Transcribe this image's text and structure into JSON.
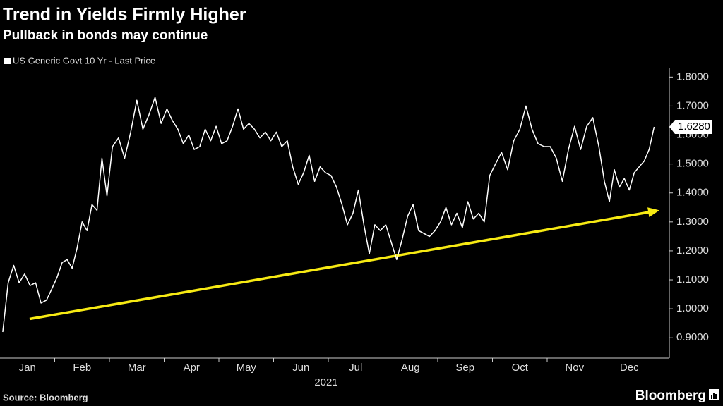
{
  "chart_data": {
    "type": "line",
    "title": "Trend in Yields Firmly Higher",
    "subtitle": "Pullback in bonds may continue",
    "source": "Source: Bloomberg",
    "brand": "Bloomberg",
    "x_label": "2021",
    "categories": [
      "Jan",
      "Feb",
      "Mar",
      "Apr",
      "May",
      "Jun",
      "Jul",
      "Aug",
      "Sep",
      "Oct",
      "Nov",
      "Dec"
    ],
    "series": [
      {
        "name": "US Generic Govt 10 Yr - Last Price",
        "color": "#ffffff",
        "end_label": "1.6280",
        "values": [
          [
            0.92,
            1.09,
            1.15,
            1.09,
            1.12,
            1.08,
            1.09,
            1.02,
            1.03,
            1.07
          ],
          [
            1.11,
            1.16,
            1.17,
            1.14,
            1.21,
            1.3,
            1.27,
            1.36,
            1.34,
            1.52,
            1.39
          ],
          [
            1.56,
            1.59,
            1.52,
            1.61,
            1.72,
            1.62,
            1.67,
            1.73,
            1.64
          ],
          [
            1.69,
            1.65,
            1.62,
            1.57,
            1.6,
            1.55,
            1.56,
            1.62,
            1.58,
            1.63
          ],
          [
            1.57,
            1.58,
            1.63,
            1.69,
            1.62,
            1.64,
            1.62,
            1.59,
            1.61,
            1.58
          ],
          [
            1.61,
            1.56,
            1.58,
            1.49,
            1.43,
            1.47,
            1.53,
            1.44,
            1.49,
            1.47
          ],
          [
            1.46,
            1.42,
            1.36,
            1.29,
            1.33,
            1.41,
            1.29,
            1.19,
            1.29,
            1.27
          ],
          [
            1.29,
            1.23,
            1.17,
            1.24,
            1.32,
            1.36,
            1.27,
            1.26,
            1.25,
            1.27
          ],
          [
            1.3,
            1.35,
            1.29,
            1.33,
            1.28,
            1.37,
            1.31,
            1.33,
            1.3,
            1.46
          ],
          [
            1.5,
            1.54,
            1.48,
            1.58,
            1.62,
            1.7,
            1.62,
            1.57,
            1.56
          ],
          [
            1.56,
            1.52,
            1.44,
            1.55,
            1.63,
            1.55,
            1.63,
            1.66,
            1.56
          ],
          [
            1.44,
            1.37,
            1.48,
            1.42,
            1.45,
            1.41,
            1.47,
            1.49,
            1.51,
            1.55,
            1.628
          ]
        ]
      }
    ],
    "trend_arrow": {
      "start": 0.965,
      "end": 1.34,
      "color": "#f7ea13"
    },
    "ylim": [
      0.83,
      1.83
    ],
    "yticks": [
      {
        "value": 0.9,
        "label": "0.9000"
      },
      {
        "value": 1.0,
        "label": "1.0000"
      },
      {
        "value": 1.1,
        "label": "1.1000"
      },
      {
        "value": 1.2,
        "label": "1.2000"
      },
      {
        "value": 1.3,
        "label": "1.3000"
      },
      {
        "value": 1.4,
        "label": "1.4000"
      },
      {
        "value": 1.5,
        "label": "1.5000"
      },
      {
        "value": 1.6,
        "label": "1.6000"
      },
      {
        "value": 1.7,
        "label": "1.7000"
      },
      {
        "value": 1.8,
        "label": "1.8000"
      }
    ],
    "grid": false,
    "y_axis_side": "right"
  }
}
